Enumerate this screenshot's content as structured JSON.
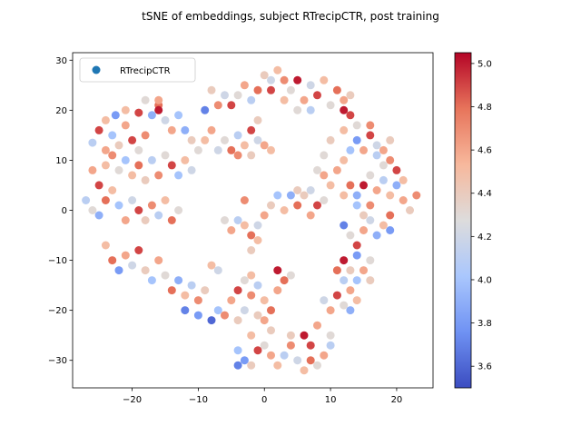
{
  "chart_data": {
    "type": "scatter",
    "title": "tSNE of embeddings, subject RTrecipCTR, post training",
    "xlabel": "",
    "ylabel": "",
    "xlim": [
      -29,
      25.5
    ],
    "ylim": [
      -35.5,
      31.5
    ],
    "x_ticks": [
      -20,
      -10,
      0,
      10,
      20
    ],
    "y_ticks": [
      -30,
      -20,
      -10,
      0,
      10,
      20,
      30
    ],
    "grid": false,
    "legend": {
      "position": "top-left",
      "entries": [
        "RTrecipCTR"
      ],
      "marker_color": "#1f77b4"
    },
    "colorbar": {
      "range": [
        3.5,
        5.05
      ],
      "ticks": [
        3.6,
        3.8,
        4.0,
        4.2,
        4.4,
        4.6,
        4.8,
        5.0
      ],
      "colormap": "coolwarm",
      "colors": [
        "#3b4cc0",
        "#6f92f3",
        "#aac7fd",
        "#dddcdc",
        "#f7b89c",
        "#e7745b",
        "#b40426"
      ]
    },
    "series": [
      {
        "name": "RTrecipCTR",
        "points": [
          [
            -26,
            13.5,
            4.1
          ],
          [
            -25,
            16,
            4.9
          ],
          [
            -24,
            18,
            4.5
          ],
          [
            -23,
            15,
            4.0
          ],
          [
            -22.5,
            19,
            3.8
          ],
          [
            -21,
            17,
            4.6
          ],
          [
            -20,
            14,
            4.9
          ],
          [
            -19,
            12,
            4.3
          ],
          [
            -18,
            15,
            4.7
          ],
          [
            -17,
            19,
            3.9
          ],
          [
            -16,
            21,
            4.8
          ],
          [
            -15,
            18,
            4.2
          ],
          [
            -14,
            16,
            4.6
          ],
          [
            -13,
            19,
            4.0
          ],
          [
            -12,
            16,
            3.9
          ],
          [
            -11,
            14,
            4.4
          ],
          [
            -21,
            20,
            4.5
          ],
          [
            -19,
            19.5,
            4.9
          ],
          [
            -18,
            22,
            4.3
          ],
          [
            -16,
            22,
            4.6
          ],
          [
            -16,
            20,
            5.0
          ],
          [
            -24,
            12,
            4.6
          ],
          [
            -22,
            13,
            4.4
          ],
          [
            -26,
            8,
            4.6
          ],
          [
            -25,
            5,
            4.9
          ],
          [
            -24,
            9,
            4.5
          ],
          [
            -23,
            11,
            4.7
          ],
          [
            -22,
            8,
            4.3
          ],
          [
            -21,
            10,
            4.0
          ],
          [
            -20,
            7,
            4.5
          ],
          [
            -19,
            9,
            4.8
          ],
          [
            -18,
            6,
            4.4
          ],
          [
            -17,
            10,
            4.1
          ],
          [
            -16,
            7,
            4.7
          ],
          [
            -15,
            11,
            4.3
          ],
          [
            -14,
            9,
            4.9
          ],
          [
            -13,
            7,
            4.0
          ],
          [
            -12,
            10,
            4.5
          ],
          [
            -11,
            8,
            4.2
          ],
          [
            -27,
            2,
            4.1
          ],
          [
            -26,
            0,
            4.3
          ],
          [
            -25,
            -1,
            3.9
          ],
          [
            -24,
            2,
            4.8
          ],
          [
            -23,
            4,
            4.5
          ],
          [
            -22,
            1,
            4.0
          ],
          [
            -21,
            -2,
            4.6
          ],
          [
            -20,
            2,
            4.2
          ],
          [
            -19,
            0,
            4.9
          ],
          [
            -18,
            -2,
            4.4
          ],
          [
            -17,
            1,
            4.7
          ],
          [
            -16,
            -1,
            4.1
          ],
          [
            -15,
            2,
            4.5
          ],
          [
            -14,
            -2,
            4.8
          ],
          [
            -13,
            0,
            4.3
          ],
          [
            -24,
            -7,
            4.5
          ],
          [
            -23,
            -10,
            4.8
          ],
          [
            -22,
            -12,
            3.8
          ],
          [
            -21,
            -9,
            4.6
          ],
          [
            -20,
            -11,
            4.2
          ],
          [
            -19,
            -8,
            4.9
          ],
          [
            -18,
            -12,
            4.4
          ],
          [
            -17,
            -14,
            4.0
          ],
          [
            -16,
            -10,
            4.6
          ],
          [
            -15,
            -13,
            4.3
          ],
          [
            -14,
            -16,
            4.8
          ],
          [
            -13,
            -14,
            3.9
          ],
          [
            -12,
            -17,
            4.5
          ],
          [
            -11,
            -15,
            4.1
          ],
          [
            -10,
            -18,
            4.7
          ],
          [
            -9,
            -16,
            4.4
          ],
          [
            -8,
            -11,
            4.5
          ],
          [
            -7,
            -12,
            4.2
          ],
          [
            -12,
            -20,
            3.7
          ],
          [
            -10,
            -21,
            3.8
          ],
          [
            -8,
            -22,
            3.6
          ],
          [
            -7,
            -20,
            4.0
          ],
          [
            -5,
            -18,
            4.6
          ],
          [
            -4,
            -16,
            4.9
          ],
          [
            -3,
            -14,
            4.3
          ],
          [
            -2,
            -17,
            4.7
          ],
          [
            -1,
            -15,
            4.1
          ],
          [
            0,
            -18,
            4.5
          ],
          [
            1,
            -20,
            4.8
          ],
          [
            -1,
            -21,
            4.4
          ],
          [
            -3,
            -20,
            4.2
          ],
          [
            2,
            -16,
            4.6
          ],
          [
            3,
            -14,
            4.8
          ],
          [
            4,
            -13,
            4.3
          ],
          [
            2,
            -12,
            5.0
          ],
          [
            -2,
            -13,
            4.5
          ],
          [
            -4,
            -22,
            4.4
          ],
          [
            -6,
            -21,
            4.7
          ],
          [
            -4,
            -28,
            4.0
          ],
          [
            -3,
            -30,
            3.8
          ],
          [
            -2,
            -31,
            4.4
          ],
          [
            -1,
            -28,
            4.9
          ],
          [
            0,
            -27,
            4.3
          ],
          [
            1,
            -29,
            4.6
          ],
          [
            2,
            -31,
            4.5
          ],
          [
            3,
            -29,
            4.1
          ],
          [
            4,
            -27,
            4.7
          ],
          [
            5,
            -30,
            4.2
          ],
          [
            6,
            -32,
            4.5
          ],
          [
            7,
            -30,
            4.8
          ],
          [
            8,
            -31,
            4.3
          ],
          [
            9,
            -29,
            4.6
          ],
          [
            4,
            -25,
            4.4
          ],
          [
            6,
            -25,
            5.0
          ],
          [
            7,
            -27,
            4.9
          ],
          [
            8,
            -23,
            4.6
          ],
          [
            10,
            -25,
            4.3
          ],
          [
            10,
            -27,
            4.1
          ],
          [
            -4,
            -31,
            3.7
          ],
          [
            -2,
            -25,
            4.5
          ],
          [
            0,
            -22,
            4.6
          ],
          [
            1,
            -24,
            4.4
          ],
          [
            9,
            -18,
            4.2
          ],
          [
            10,
            -20,
            4.6
          ],
          [
            11,
            -17,
            4.9
          ],
          [
            12,
            -19,
            4.3
          ],
          [
            13,
            -16,
            4.6
          ],
          [
            12,
            -14,
            4.1
          ],
          [
            11,
            -12,
            4.8
          ],
          [
            12,
            -10,
            5.0
          ],
          [
            13,
            -12,
            4.4
          ],
          [
            14,
            -14,
            4.0
          ],
          [
            15,
            -12,
            4.6
          ],
          [
            16,
            -10,
            4.3
          ],
          [
            14,
            -9,
            3.8
          ],
          [
            13,
            -20,
            3.9
          ],
          [
            14,
            -18,
            4.5
          ],
          [
            16,
            -14,
            4.4
          ],
          [
            12,
            -3,
            3.7
          ],
          [
            13,
            -5,
            4.3
          ],
          [
            14,
            -7,
            4.9
          ],
          [
            15,
            -4,
            4.6
          ],
          [
            16,
            -2,
            4.2
          ],
          [
            17,
            -5,
            3.9
          ],
          [
            18,
            -3,
            4.5
          ],
          [
            19,
            -1,
            4.8
          ],
          [
            19,
            -4,
            3.8
          ],
          [
            15,
            -1,
            4.4
          ],
          [
            14,
            1,
            4.0
          ],
          [
            16,
            1,
            4.7
          ],
          [
            12,
            3,
            4.5
          ],
          [
            13,
            5,
            4.8
          ],
          [
            14,
            3,
            3.9
          ],
          [
            15,
            5,
            5.0
          ],
          [
            16,
            7,
            4.3
          ],
          [
            17,
            4,
            4.6
          ],
          [
            18,
            6,
            4.1
          ],
          [
            19,
            3,
            4.5
          ],
          [
            20,
            5,
            3.9
          ],
          [
            21,
            2,
            4.6
          ],
          [
            22,
            0,
            4.4
          ],
          [
            23,
            3,
            4.7
          ],
          [
            20,
            8,
            4.9
          ],
          [
            21,
            6,
            4.5
          ],
          [
            18,
            9,
            4.3
          ],
          [
            19,
            10,
            4.7
          ],
          [
            17,
            11,
            4.1
          ],
          [
            12,
            10,
            4.5
          ],
          [
            13,
            12,
            4.0
          ],
          [
            14,
            14,
            3.8
          ],
          [
            15,
            12,
            4.6
          ],
          [
            16,
            15,
            4.9
          ],
          [
            17,
            13,
            4.2
          ],
          [
            18,
            12,
            4.6
          ],
          [
            19,
            14,
            4.4
          ],
          [
            16,
            17,
            4.7
          ],
          [
            14,
            17,
            4.3
          ],
          [
            12,
            16,
            4.5
          ],
          [
            13,
            19,
            4.9
          ],
          [
            12,
            22,
            4.6
          ],
          [
            11,
            24,
            4.8
          ],
          [
            10,
            21,
            4.3
          ],
          [
            12,
            20,
            5.0
          ],
          [
            13,
            23,
            4.4
          ],
          [
            9,
            26,
            4.5
          ],
          [
            8,
            23,
            4.9
          ],
          [
            7,
            25,
            4.2
          ],
          [
            6,
            22,
            4.6
          ],
          [
            5,
            26,
            5.0
          ],
          [
            4,
            24,
            4.3
          ],
          [
            3,
            26,
            4.7
          ],
          [
            2,
            28,
            4.5
          ],
          [
            1,
            26,
            4.2
          ],
          [
            0,
            27,
            4.4
          ],
          [
            -1,
            24,
            4.8
          ],
          [
            -2,
            22,
            4.1
          ],
          [
            -3,
            25,
            4.6
          ],
          [
            -4,
            23,
            4.3
          ],
          [
            -5,
            21,
            4.9
          ],
          [
            -6,
            23,
            4.2
          ],
          [
            -7,
            21,
            4.7
          ],
          [
            -8,
            24,
            4.4
          ],
          [
            -9,
            20,
            3.7
          ],
          [
            3,
            22,
            4.5
          ],
          [
            1,
            24,
            4.9
          ],
          [
            5,
            20,
            4.3
          ],
          [
            7,
            20,
            4.1
          ],
          [
            -8,
            16,
            4.6
          ],
          [
            -6,
            14,
            4.3
          ],
          [
            -5,
            12,
            4.8
          ],
          [
            -4,
            15,
            4.1
          ],
          [
            -3,
            13,
            4.5
          ],
          [
            -2,
            16,
            4.9
          ],
          [
            -1,
            14,
            4.2
          ],
          [
            0,
            13,
            4.6
          ],
          [
            -2,
            11,
            4.4
          ],
          [
            -4,
            11,
            4.7
          ],
          [
            -7,
            12,
            4.2
          ],
          [
            -9,
            14,
            4.5
          ],
          [
            -10,
            12,
            4.3
          ],
          [
            -1,
            18,
            4.4
          ],
          [
            1,
            12,
            4.5
          ],
          [
            -6,
            -2,
            4.3
          ],
          [
            -5,
            -4,
            4.6
          ],
          [
            -4,
            -2,
            4.1
          ],
          [
            -3,
            -3,
            4.5
          ],
          [
            -2,
            -5,
            4.8
          ],
          [
            -1,
            -3,
            4.2
          ],
          [
            0,
            -1,
            4.6
          ],
          [
            1,
            1,
            4.4
          ],
          [
            2,
            3,
            4.0
          ],
          [
            3,
            0,
            4.5
          ],
          [
            4,
            3,
            3.9
          ],
          [
            5,
            1,
            4.8
          ],
          [
            6,
            3,
            4.4
          ],
          [
            7,
            -1,
            4.6
          ],
          [
            8,
            1,
            4.9
          ],
          [
            9,
            2,
            4.3
          ],
          [
            7,
            4,
            4.2
          ],
          [
            5,
            4,
            4.4
          ],
          [
            -3,
            2,
            4.7
          ],
          [
            -2,
            -8,
            4.4
          ],
          [
            -1,
            -6,
            4.5
          ],
          [
            9,
            11,
            4.3
          ],
          [
            10,
            14,
            4.4
          ],
          [
            11,
            8,
            4.6
          ],
          [
            10,
            5,
            4.5
          ],
          [
            8,
            8,
            4.3
          ],
          [
            9,
            7,
            4.6
          ]
        ]
      }
    ]
  }
}
